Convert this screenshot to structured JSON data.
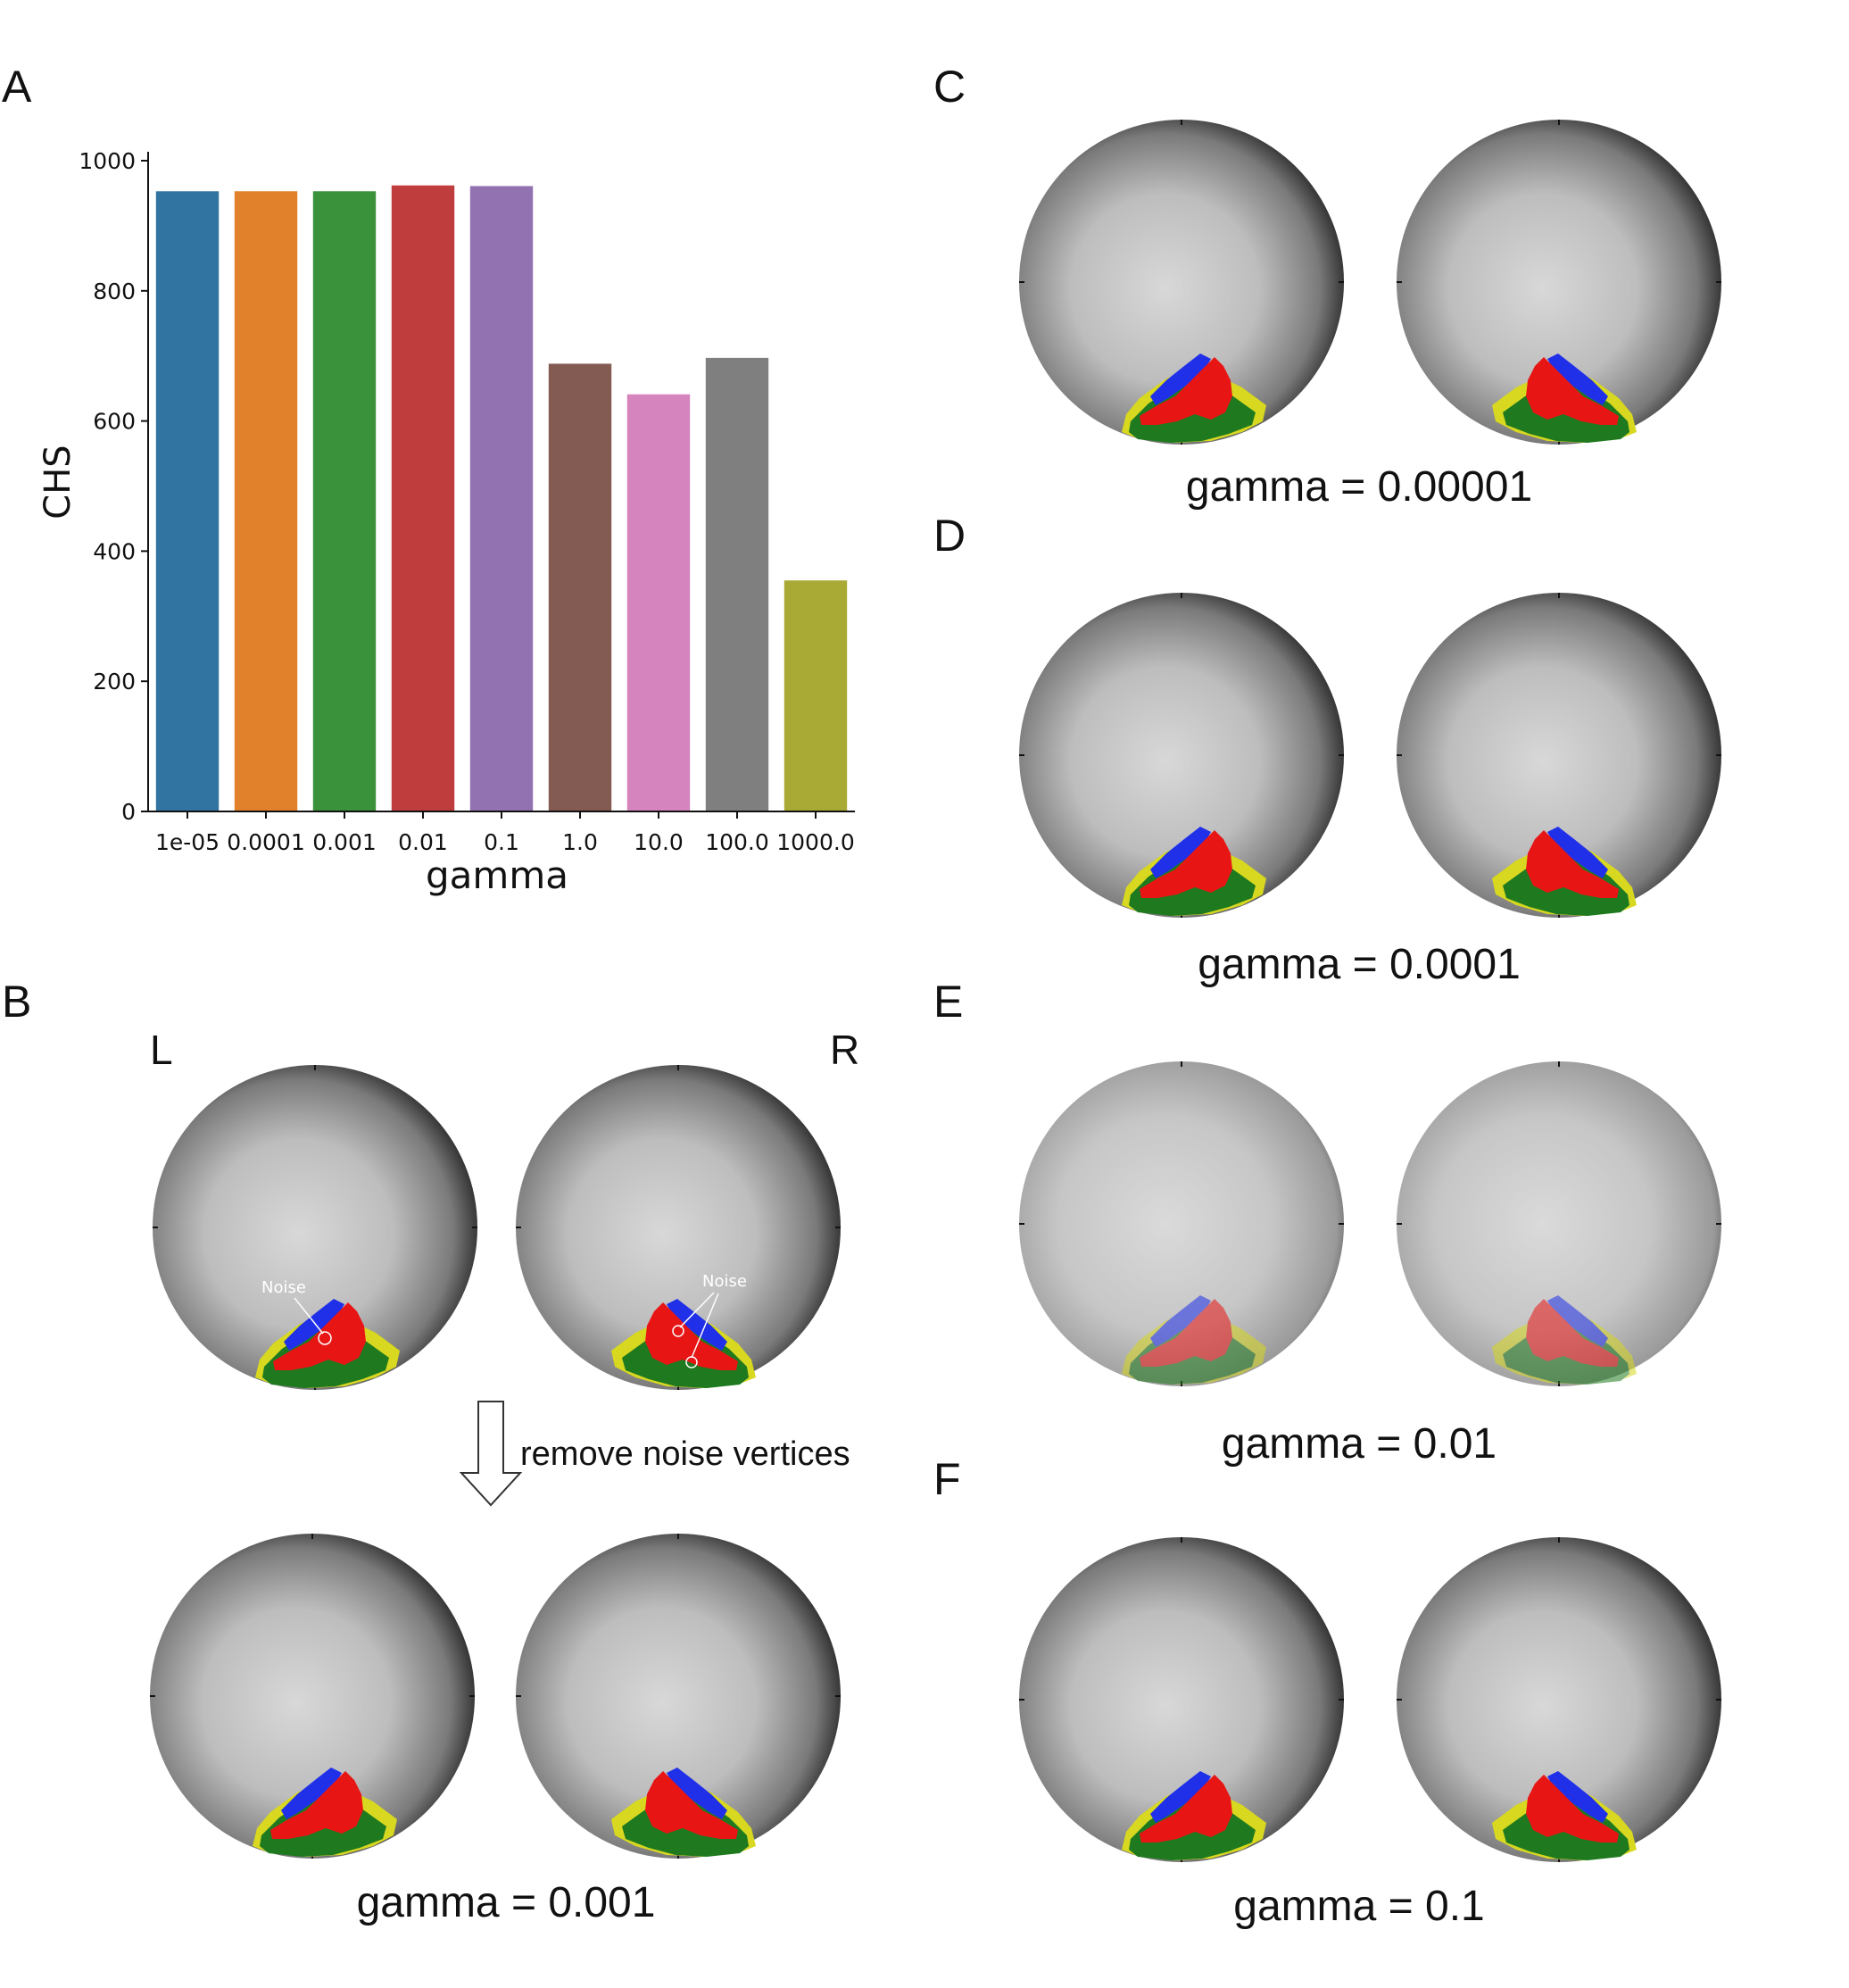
{
  "panels": {
    "A": "A",
    "B": "B",
    "C": "C",
    "D": "D",
    "E": "E",
    "F": "F"
  },
  "hemi": {
    "left": "L",
    "right": "R"
  },
  "noise_label": "Noise",
  "arrow_label": "remove noise vertices",
  "captions": {
    "B": "gamma = 0.001",
    "C": "gamma = 0.00001",
    "D": "gamma = 0.0001",
    "E": "gamma = 0.01",
    "F": "gamma = 0.1"
  },
  "colors": {
    "parcel_blue": "#2030e8",
    "parcel_red": "#e81515",
    "parcel_green": "#1f7a1f",
    "parcel_yellow": "#d8d820",
    "sphere_light": "#d6d6d6",
    "sphere_dark": "#1e1e1e"
  },
  "chart_data": {
    "type": "bar",
    "xlabel": "gamma",
    "ylabel": "CHS",
    "ylim": [
      0,
      1000
    ],
    "yticks": [
      0,
      200,
      400,
      600,
      800,
      1000
    ],
    "categories": [
      "1e-05",
      "0.0001",
      "0.001",
      "0.01",
      "0.1",
      "1.0",
      "10.0",
      "100.0",
      "1000.0"
    ],
    "values": [
      953,
      953,
      953,
      962,
      961,
      688,
      641,
      697,
      355
    ],
    "colors": [
      "#3274a1",
      "#e1812c",
      "#3a923a",
      "#c03d3e",
      "#9372b2",
      "#845b53",
      "#d684bd",
      "#7f7f7f",
      "#a9aa35"
    ]
  }
}
